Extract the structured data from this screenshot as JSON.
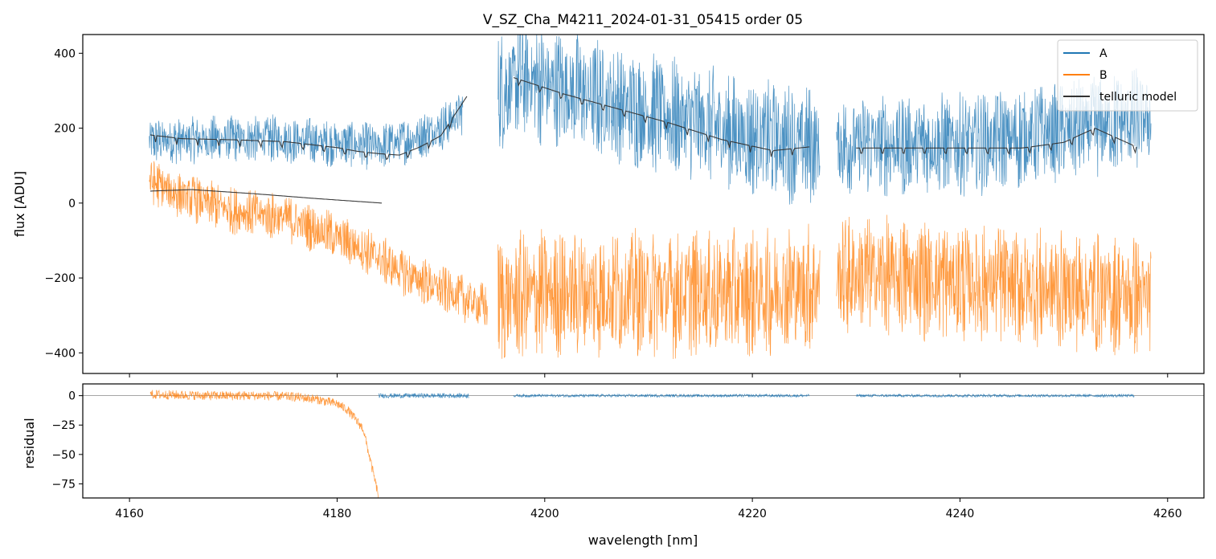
{
  "title": "V_SZ_Cha_M4211_2024-01-31_05415  order 05",
  "colors": {
    "A": "#1f77b4",
    "B": "#ff7f0e",
    "telluric": "#333333",
    "zeroline": "#888888",
    "frame": "#000000"
  },
  "chart_data": [
    {
      "type": "line",
      "panel": "main",
      "xlabel": "",
      "ylabel": "flux [ADU]",
      "xlim": [
        4155.5,
        4263.5
      ],
      "ylim": [
        -455,
        450
      ],
      "xticks": [
        4160,
        4180,
        4200,
        4220,
        4240,
        4260
      ],
      "yticks": [
        -400,
        -200,
        0,
        200,
        400
      ],
      "ytick_labels": [
        "−400",
        "−200",
        "0",
        "200",
        "400"
      ],
      "legend": {
        "position": "top-right",
        "entries": [
          {
            "label": "A",
            "color": "#1f77b4"
          },
          {
            "label": "B",
            "color": "#ff7f0e"
          },
          {
            "label": "telluric model",
            "color": "#333333"
          }
        ]
      },
      "series": [
        {
          "name": "A",
          "style": "noisy",
          "segments": [
            {
              "x": [
                4161.9,
                4168,
                4174,
                4180,
                4184,
                4187,
                4190,
                4192.1
              ],
              "y": [
                165,
                170,
                172,
                160,
                150,
                170,
                200,
                245
              ],
              "noise": 55
            },
            {
              "x": [
                4195.5,
                4198,
                4205,
                4212,
                4220,
                4226.5
              ],
              "y": [
                300,
                330,
                280,
                230,
                175,
                150
              ],
              "noise": 140
            },
            {
              "x": [
                4228.1,
                4234,
                4242,
                4250,
                4258.4
              ],
              "y": [
                160,
                155,
                160,
                190,
                230
              ],
              "noise": 120
            }
          ]
        },
        {
          "name": "B",
          "style": "noisy",
          "segments": [
            {
              "x": [
                4161.9,
                4165,
                4170,
                4175,
                4180,
                4183,
                4186,
                4190,
                4194.5
              ],
              "y": [
                60,
                20,
                -20,
                -40,
                -90,
                -130,
                -180,
                -230,
                -280
              ],
              "noise": 55
            },
            {
              "x": [
                4195.5,
                4200,
                4210,
                4220,
                4226.5
              ],
              "y": [
                -260,
                -240,
                -240,
                -240,
                -220
              ],
              "noise": 150
            },
            {
              "x": [
                4228.1,
                4235,
                4245,
                4258.4
              ],
              "y": [
                -190,
                -200,
                -220,
                -250
              ],
              "noise": 140
            }
          ]
        },
        {
          "name": "telluric model",
          "style": "smooth",
          "segments": [
            {
              "x": [
                4162,
                4165,
                4170,
                4175,
                4180,
                4182,
                4184,
                4186,
                4188,
                4190,
                4192.5
              ],
              "y": [
                182,
                172,
                169,
                164,
                148,
                138,
                132,
                128,
                150,
                180,
                285
              ]
            },
            {
              "x": [
                4197,
                4202,
                4207,
                4212,
                4217,
                4222,
                4225.5
              ],
              "y": [
                335,
                290,
                252,
                214,
                170,
                140,
                150
              ]
            },
            {
              "x": [
                4230,
                4238,
                4246,
                4250,
                4253,
                4257
              ],
              "y": [
                147,
                147,
                147,
                162,
                200,
                150
              ]
            },
            {
              "x": [
                4162,
                4166,
                4172,
                4178,
                4184.3
              ],
              "y": [
                32,
                36,
                25,
                12,
                0
              ]
            }
          ]
        }
      ]
    },
    {
      "type": "line",
      "panel": "residual",
      "xlabel": "wavelength [nm]",
      "ylabel": "residual",
      "xlim": [
        4155.5,
        4263.5
      ],
      "ylim": [
        -87,
        10
      ],
      "xticks": [
        4160,
        4180,
        4200,
        4220,
        4240,
        4260
      ],
      "yticks": [
        0,
        -25,
        -50,
        -75
      ],
      "ytick_labels": [
        "0",
        "−25",
        "−50",
        "−75"
      ],
      "series": [
        {
          "name": "A",
          "segments": [
            {
              "x": [
                4184,
                4192.7
              ],
              "y": [
                0,
                0
              ],
              "noise": 2
            },
            {
              "x": [
                4197,
                4225.5
              ],
              "y": [
                0,
                0
              ],
              "noise": 1.2
            },
            {
              "x": [
                4230,
                4256.8
              ],
              "y": [
                0,
                0
              ],
              "noise": 1.2
            }
          ]
        },
        {
          "name": "B",
          "segments": [
            {
              "x": [
                4162,
                4168,
                4173,
                4176,
                4178,
                4180,
                4181,
                4182.5,
                4184
              ],
              "y": [
                1,
                0,
                0,
                -1,
                -3,
                -7,
                -12,
                -28,
                -86
              ],
              "noise": 4
            }
          ]
        }
      ]
    }
  ]
}
